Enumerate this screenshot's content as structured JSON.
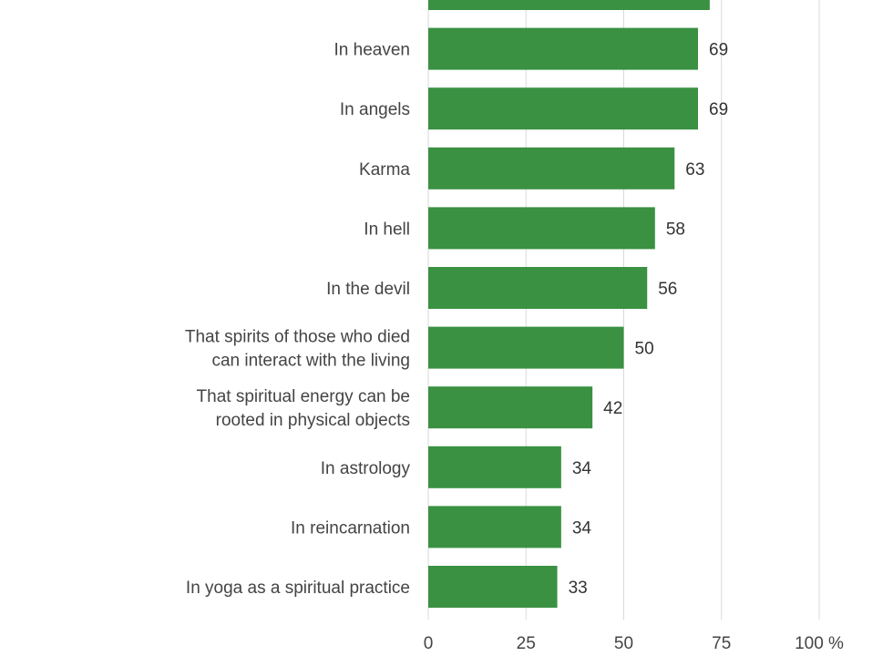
{
  "chart_data": {
    "type": "bar",
    "orientation": "horizontal",
    "title": "",
    "xlabel": "",
    "ylabel": "",
    "categories": [
      "",
      "In heaven",
      "In angels",
      "Karma",
      "In hell",
      "In the devil",
      "That spirits of those who died|can interact with the living",
      "That spiritual energy can be|rooted in physical objects",
      "In astrology",
      "In reincarnation",
      "In yoga as a spiritual practice"
    ],
    "values": [
      72,
      69,
      69,
      63,
      58,
      56,
      50,
      42,
      34,
      34,
      33
    ],
    "value_labels": [
      "",
      "69",
      "69",
      "63",
      "58",
      "56",
      "50",
      "42",
      "34",
      "34",
      "33"
    ],
    "xlim": [
      0,
      100
    ],
    "ticks": [
      0,
      25,
      50,
      75,
      100
    ],
    "tick_labels": [
      "0",
      "25",
      "50",
      "75",
      "100 %"
    ],
    "grid": true,
    "colors": {
      "bar": "#3a9142",
      "grid": "#d9d9d9"
    }
  }
}
